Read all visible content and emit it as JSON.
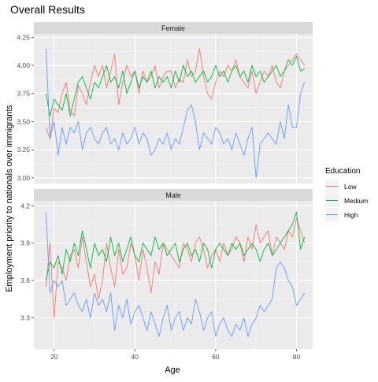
{
  "chart_data": {
    "type": "line",
    "title": "Overall Results",
    "xlabel": "Age",
    "ylabel": "Employment priority to nationals over immigrants",
    "x_range": [
      15,
      84
    ],
    "x_ticks": [
      20,
      40,
      60,
      80
    ],
    "x": [
      18,
      19,
      20,
      21,
      22,
      23,
      24,
      25,
      26,
      27,
      28,
      29,
      30,
      31,
      32,
      33,
      34,
      35,
      36,
      37,
      38,
      39,
      40,
      41,
      42,
      43,
      44,
      45,
      46,
      47,
      48,
      49,
      50,
      51,
      52,
      53,
      54,
      55,
      56,
      57,
      58,
      59,
      60,
      61,
      62,
      63,
      64,
      65,
      66,
      67,
      68,
      69,
      70,
      71,
      72,
      73,
      74,
      75,
      76,
      77,
      78,
      79,
      80,
      81,
      82
    ],
    "legend": {
      "title": "Education",
      "position": "right",
      "entries": [
        "Low",
        "Medium",
        "High"
      ]
    },
    "colors": {
      "Low": "#F8766D",
      "Medium": "#00BA38",
      "High": "#619CFF"
    },
    "grid": true,
    "panels": [
      {
        "strip": "Female",
        "ylim": [
          2.95,
          4.28
        ],
        "y_ticks": [
          3.0,
          3.25,
          3.5,
          3.75,
          4.0,
          4.25
        ],
        "y_tick_labels": [
          "3.00",
          "3.25",
          "3.50",
          "3.75",
          "4.00",
          "4.25"
        ],
        "series": [
          {
            "name": "Low",
            "values": [
              3.45,
              3.35,
              3.62,
              3.58,
              3.75,
              3.85,
              3.6,
              3.55,
              3.82,
              3.75,
              3.65,
              3.85,
              4.0,
              3.9,
              4.0,
              3.8,
              3.95,
              4.1,
              3.65,
              3.85,
              4.0,
              3.9,
              3.95,
              3.75,
              3.95,
              3.85,
              3.9,
              4.0,
              3.8,
              3.9,
              3.95,
              3.95,
              3.8,
              3.88,
              3.85,
              4.05,
              3.9,
              3.95,
              4.15,
              3.9,
              3.75,
              3.7,
              3.85,
              3.95,
              3.9,
              4.0,
              3.95,
              4.05,
              3.9,
              3.85,
              3.8,
              3.95,
              3.75,
              3.85,
              3.95,
              3.9,
              4.0,
              3.85,
              3.8,
              3.95,
              4.0,
              4.05,
              4.1,
              4.05,
              4.0
            ]
          },
          {
            "name": "Medium",
            "values": [
              3.75,
              3.55,
              3.7,
              3.65,
              3.6,
              3.75,
              3.55,
              3.7,
              3.85,
              3.9,
              3.8,
              3.7,
              3.85,
              3.8,
              3.9,
              4.0,
              3.85,
              3.9,
              3.8,
              3.95,
              3.75,
              3.85,
              3.95,
              3.8,
              3.9,
              3.85,
              3.95,
              3.8,
              3.9,
              3.85,
              3.9,
              3.8,
              3.95,
              3.85,
              4.0,
              3.9,
              3.95,
              3.85,
              3.9,
              3.95,
              3.85,
              3.9,
              4.0,
              3.9,
              3.95,
              3.85,
              3.95,
              4.0,
              3.9,
              3.95,
              3.85,
              4.0,
              3.9,
              3.95,
              3.85,
              3.9,
              3.95,
              4.0,
              3.9,
              3.95,
              4.05,
              4.0,
              4.08,
              3.95,
              3.97
            ]
          },
          {
            "name": "High",
            "values": [
              4.15,
              3.35,
              3.5,
              3.2,
              3.45,
              3.3,
              3.45,
              3.4,
              3.5,
              3.25,
              3.4,
              3.45,
              3.35,
              3.3,
              3.4,
              3.45,
              3.3,
              3.35,
              3.25,
              3.4,
              3.3,
              3.35,
              3.45,
              3.3,
              3.4,
              3.35,
              3.2,
              3.25,
              3.35,
              3.3,
              3.4,
              3.25,
              3.35,
              3.3,
              3.45,
              3.6,
              3.65,
              3.5,
              3.25,
              3.4,
              3.35,
              3.3,
              3.45,
              3.4,
              3.3,
              3.35,
              3.25,
              3.4,
              3.3,
              3.2,
              3.35,
              3.45,
              3.0,
              3.3,
              3.35,
              3.4,
              3.35,
              3.3,
              3.5,
              3.35,
              3.65,
              3.45,
              3.45,
              3.75,
              3.85
            ]
          }
        ]
      },
      {
        "strip": "Male",
        "ylim": [
          3.05,
          4.24
        ],
        "y_ticks": [
          3.3,
          3.6,
          3.9,
          4.2
        ],
        "y_tick_labels": [
          "3.3",
          "3.6",
          "3.9",
          "4.2"
        ],
        "series": [
          {
            "name": "Low",
            "values": [
              3.55,
              3.9,
              3.3,
              3.75,
              3.7,
              3.6,
              3.8,
              3.85,
              3.7,
              3.95,
              3.75,
              3.55,
              3.65,
              3.45,
              3.6,
              3.9,
              3.7,
              3.55,
              3.85,
              3.65,
              3.7,
              3.9,
              3.8,
              3.6,
              3.85,
              3.7,
              3.5,
              3.75,
              3.65,
              3.9,
              3.85,
              3.8,
              3.75,
              3.7,
              3.9,
              3.85,
              3.75,
              3.9,
              3.95,
              3.85,
              3.7,
              3.8,
              3.85,
              3.75,
              3.9,
              3.8,
              3.85,
              3.95,
              3.9,
              3.75,
              3.95,
              3.85,
              4.05,
              3.9,
              3.95,
              4.0,
              3.8,
              3.95,
              3.9,
              3.85,
              4.0,
              3.95,
              4.1,
              4.0,
              3.9
            ]
          },
          {
            "name": "Medium",
            "values": [
              3.6,
              3.75,
              3.7,
              3.8,
              3.65,
              3.85,
              3.75,
              3.9,
              3.8,
              4.0,
              3.85,
              3.7,
              3.9,
              3.8,
              3.85,
              3.75,
              3.95,
              3.8,
              3.9,
              3.75,
              3.85,
              3.95,
              3.8,
              3.75,
              3.9,
              3.85,
              3.8,
              3.95,
              3.85,
              3.9,
              3.8,
              3.85,
              3.9,
              3.75,
              3.85,
              3.9,
              3.8,
              3.85,
              3.75,
              3.9,
              3.85,
              3.7,
              3.85,
              3.9,
              3.85,
              3.8,
              3.9,
              3.85,
              3.9,
              3.8,
              3.85,
              3.9,
              3.85,
              3.75,
              3.85,
              3.9,
              3.8,
              3.85,
              3.9,
              3.95,
              4.0,
              4.05,
              4.15,
              3.85,
              3.95
            ]
          },
          {
            "name": "High",
            "values": [
              4.15,
              3.5,
              3.6,
              3.55,
              3.6,
              3.4,
              3.45,
              3.5,
              3.4,
              3.35,
              3.45,
              3.3,
              3.5,
              3.4,
              3.45,
              3.35,
              3.5,
              3.2,
              3.4,
              3.3,
              3.45,
              3.25,
              3.35,
              3.4,
              3.3,
              3.2,
              3.35,
              3.25,
              3.15,
              3.3,
              3.4,
              3.2,
              3.3,
              3.35,
              3.2,
              3.3,
              3.25,
              3.45,
              3.35,
              3.2,
              3.3,
              3.35,
              3.15,
              3.25,
              3.3,
              3.2,
              3.15,
              3.25,
              3.2,
              3.3,
              3.15,
              3.25,
              3.3,
              3.4,
              3.35,
              3.4,
              3.45,
              3.7,
              3.75,
              3.7,
              3.6,
              3.55,
              3.4,
              3.45,
              3.5
            ]
          }
        ]
      }
    ]
  }
}
